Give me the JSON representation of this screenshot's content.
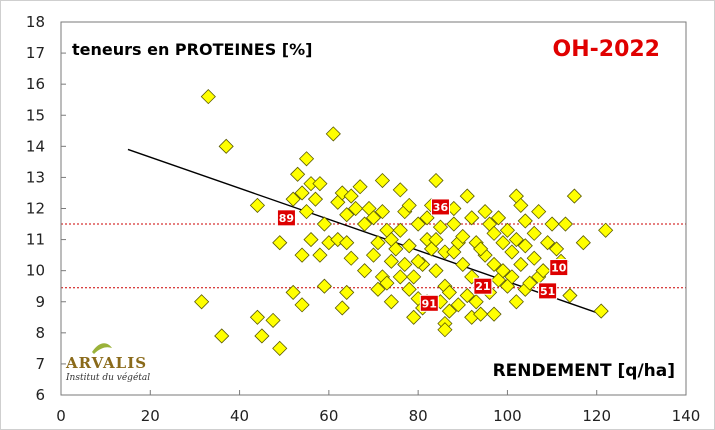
{
  "chart_data": {
    "type": "scatter",
    "title": "teneurs en PROTEINES [%]",
    "tag": "OH-2022",
    "xlabel": "RENDEMENT [q/ha]",
    "xlim": [
      0,
      140
    ],
    "ylim": [
      6,
      18
    ],
    "xticks": [
      "0",
      "20",
      "40",
      "60",
      "80",
      "100",
      "120",
      "140"
    ],
    "yticks": [
      "6",
      "7",
      "8",
      "9",
      "10",
      "11",
      "12",
      "13",
      "14",
      "15",
      "16",
      "17",
      "18"
    ],
    "grid": false,
    "reference_lines": [
      11.5,
      9.45
    ],
    "trendline": {
      "x": [
        15,
        121
      ],
      "y": [
        13.9,
        8.6
      ]
    },
    "points": [
      [
        33,
        15.6
      ],
      [
        37,
        14.0
      ],
      [
        31.5,
        9.0
      ],
      [
        36,
        7.9
      ],
      [
        44,
        8.5
      ],
      [
        45,
        7.9
      ],
      [
        47.5,
        8.4
      ],
      [
        49,
        7.5
      ],
      [
        44,
        12.1
      ],
      [
        49,
        10.9
      ],
      [
        52,
        9.3
      ],
      [
        54,
        8.9
      ],
      [
        52,
        12.3
      ],
      [
        53,
        13.1
      ],
      [
        55,
        13.6
      ],
      [
        54,
        12.5
      ],
      [
        56,
        12.8
      ],
      [
        55,
        11.9
      ],
      [
        56,
        11.0
      ],
      [
        54,
        10.5
      ],
      [
        57,
        12.3
      ],
      [
        58,
        12.8
      ],
      [
        59,
        11.5
      ],
      [
        60,
        10.9
      ],
      [
        58,
        10.5
      ],
      [
        61,
        14.4
      ],
      [
        62,
        12.2
      ],
      [
        63,
        12.5
      ],
      [
        64,
        11.8
      ],
      [
        65,
        12.4
      ],
      [
        66,
        12.0
      ],
      [
        62,
        11.0
      ],
      [
        64,
        10.9
      ],
      [
        63,
        8.8
      ],
      [
        64,
        9.3
      ],
      [
        65,
        10.4
      ],
      [
        67,
        12.7
      ],
      [
        68,
        11.5
      ],
      [
        69,
        12.0
      ],
      [
        70,
        11.7
      ],
      [
        71,
        10.9
      ],
      [
        70,
        10.5
      ],
      [
        72,
        12.9
      ],
      [
        72,
        11.9
      ],
      [
        73,
        11.3
      ],
      [
        74,
        11.0
      ],
      [
        72,
        9.8
      ],
      [
        71,
        9.4
      ],
      [
        73,
        9.6
      ],
      [
        74,
        10.3
      ],
      [
        76,
        12.6
      ],
      [
        77,
        11.9
      ],
      [
        78,
        12.1
      ],
      [
        76,
        11.3
      ],
      [
        78,
        10.8
      ],
      [
        77,
        10.2
      ],
      [
        76,
        9.8
      ],
      [
        78,
        9.4
      ],
      [
        79,
        9.8
      ],
      [
        80,
        9.1
      ],
      [
        79,
        8.5
      ],
      [
        81,
        8.8
      ],
      [
        80,
        11.5
      ],
      [
        82,
        11.7
      ],
      [
        82,
        11.0
      ],
      [
        83,
        10.7
      ],
      [
        81,
        10.2
      ],
      [
        84,
        12.9
      ],
      [
        83,
        12.1
      ],
      [
        85,
        11.4
      ],
      [
        84,
        11.0
      ],
      [
        86,
        10.6
      ],
      [
        84,
        10.0
      ],
      [
        86,
        9.5
      ],
      [
        85,
        9.0
      ],
      [
        86,
        8.3
      ],
      [
        87,
        8.7
      ],
      [
        86,
        8.1
      ],
      [
        88,
        10.6
      ],
      [
        89,
        10.9
      ],
      [
        90,
        11.1
      ],
      [
        88,
        11.5
      ],
      [
        91,
        12.4
      ],
      [
        92,
        11.7
      ],
      [
        93,
        10.9
      ],
      [
        90,
        10.2
      ],
      [
        92,
        9.8
      ],
      [
        91,
        9.2
      ],
      [
        93,
        9.0
      ],
      [
        92,
        8.5
      ],
      [
        94,
        8.6
      ],
      [
        95,
        11.9
      ],
      [
        96,
        11.5
      ],
      [
        97,
        11.2
      ],
      [
        98,
        11.7
      ],
      [
        95,
        10.5
      ],
      [
        97,
        10.2
      ],
      [
        98,
        9.7
      ],
      [
        96,
        9.3
      ],
      [
        97,
        8.6
      ],
      [
        99,
        10.9
      ],
      [
        100,
        11.3
      ],
      [
        101,
        10.6
      ],
      [
        99,
        10.0
      ],
      [
        102,
        12.4
      ],
      [
        103,
        12.1
      ],
      [
        104,
        11.6
      ],
      [
        102,
        11.0
      ],
      [
        104,
        10.8
      ],
      [
        103,
        10.2
      ],
      [
        101,
        9.8
      ],
      [
        104,
        9.4
      ],
      [
        102,
        9.0
      ],
      [
        105,
        9.6
      ],
      [
        106,
        11.2
      ],
      [
        107,
        11.9
      ],
      [
        106,
        10.4
      ],
      [
        107,
        9.8
      ],
      [
        109,
        10.9
      ],
      [
        110,
        11.5
      ],
      [
        111,
        10.7
      ],
      [
        112,
        10.3
      ],
      [
        113,
        11.5
      ],
      [
        114,
        9.2
      ],
      [
        115,
        12.4
      ],
      [
        117,
        10.9
      ],
      [
        122,
        11.3
      ],
      [
        121,
        8.7
      ],
      [
        88,
        12.0
      ],
      [
        75,
        10.7
      ],
      [
        68,
        10.0
      ],
      [
        59,
        9.5
      ],
      [
        80,
        10.3
      ],
      [
        94,
        10.7
      ],
      [
        100,
        9.5
      ],
      [
        108,
        10.0
      ],
      [
        87,
        9.3
      ],
      [
        82,
        9.0
      ],
      [
        74,
        9.0
      ],
      [
        89,
        8.9
      ]
    ],
    "labeled_points": [
      {
        "label": "89",
        "x": 50.5,
        "y": 11.7
      },
      {
        "label": "36",
        "x": 85,
        "y": 12.05
      },
      {
        "label": "10",
        "x": 111.5,
        "y": 10.1
      },
      {
        "label": "21",
        "x": 94.5,
        "y": 9.5
      },
      {
        "label": "51",
        "x": 109,
        "y": 9.35
      },
      {
        "label": "91",
        "x": 82.5,
        "y": 8.95
      }
    ],
    "colors": {
      "marker_fill": "#ffff00",
      "marker_stroke": "#5a5a00",
      "trendline": "#000000",
      "reference_line": "#cc0000",
      "label_box": "#dd0000",
      "tag": "#e00000",
      "frame": "#7a7a7a"
    }
  },
  "logo": {
    "name": "ARVALIS",
    "subtitle": "Institut du végétal"
  }
}
